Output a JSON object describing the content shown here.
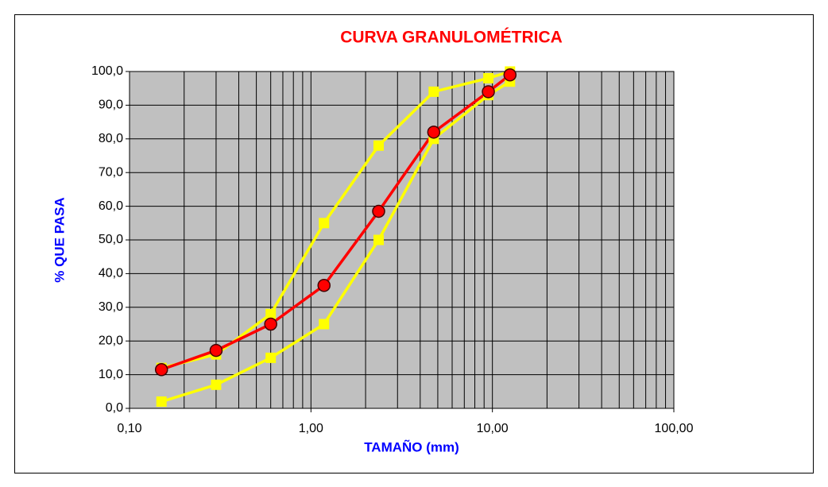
{
  "chart_data": {
    "type": "line",
    "title": "CURVA GRANULOMÉTRICA",
    "x_label": "TAMAÑO (mm)",
    "y_label": "% QUE PASA",
    "log_x": true,
    "grid": true,
    "x": [
      0.15,
      0.3,
      0.6,
      1.18,
      2.36,
      4.75,
      9.5,
      12.5
    ],
    "series": [
      {
        "color": "#ffff00",
        "marker": "square",
        "values": [
          12,
          16,
          28,
          55,
          78,
          94,
          98,
          100
        ]
      },
      {
        "color": "#ffff00",
        "marker": "square",
        "values": [
          2,
          7,
          15,
          25,
          50,
          80,
          93,
          97
        ]
      },
      {
        "color": "#ff0000",
        "marker": "circle",
        "values": [
          11.5,
          17.2,
          25.0,
          36.5,
          58.5,
          82.0,
          94.0,
          99.0
        ]
      }
    ],
    "xlim": [
      0.1,
      100
    ],
    "xticks": [
      {
        "value": 0.1,
        "label": "0,10"
      },
      {
        "value": 1,
        "label": "1,00"
      },
      {
        "value": 10,
        "label": "10,00"
      },
      {
        "value": 100,
        "label": "100,00"
      }
    ],
    "ylim": [
      0,
      100
    ],
    "yticks": [
      {
        "value": 0,
        "label": "0,0"
      },
      {
        "value": 10,
        "label": "10,0"
      },
      {
        "value": 20,
        "label": "20,0"
      },
      {
        "value": 30,
        "label": "30,0"
      },
      {
        "value": 40,
        "label": "40,0"
      },
      {
        "value": 50,
        "label": "50,0"
      },
      {
        "value": 60,
        "label": "60,0"
      },
      {
        "value": 70,
        "label": "70,0"
      },
      {
        "value": 80,
        "label": "80,0"
      },
      {
        "value": 90,
        "label": "90,0"
      },
      {
        "value": 100,
        "label": "100,0"
      }
    ]
  }
}
